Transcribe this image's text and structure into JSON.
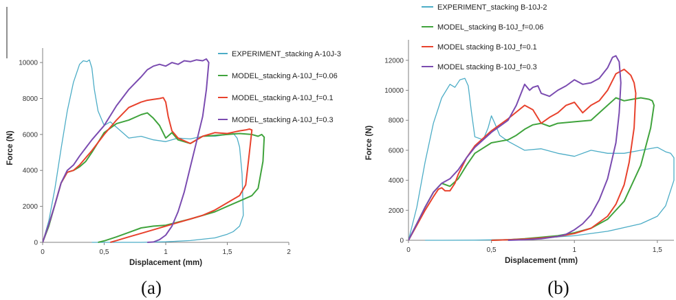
{
  "chart_data": [
    {
      "type": "line",
      "caption": "(a)",
      "xlabel": "Displacement (mm)",
      "ylabel": "Force (N)",
      "xlim": [
        0,
        2
      ],
      "ylim": [
        0,
        10500
      ],
      "xticks": [
        0,
        0.5,
        1,
        1.5,
        2
      ],
      "xtick_labels": [
        "0",
        "0,5",
        "1",
        "1,5",
        "2"
      ],
      "yticks": [
        0,
        2000,
        4000,
        6000,
        8000,
        10000
      ],
      "ytick_labels": [
        "0",
        "2000",
        "4000",
        "6000",
        "8000",
        "10000"
      ],
      "legend_position": "right",
      "series": [
        {
          "name": "EXPERIMENT_stacking A-10J-3",
          "color": "#4bacc6",
          "x": [
            0,
            0.05,
            0.1,
            0.15,
            0.2,
            0.25,
            0.3,
            0.33,
            0.36,
            0.38,
            0.4,
            0.42,
            0.45,
            0.5,
            0.55,
            0.6,
            0.65,
            0.7,
            0.8,
            0.9,
            1.0,
            1.1,
            1.2,
            1.3,
            1.4,
            1.5,
            1.55,
            1.58,
            1.6,
            1.62,
            1.63,
            1.6,
            1.55,
            1.5,
            1.4,
            1.2,
            1.0,
            0.8,
            0.6,
            0.5,
            0.4
          ],
          "y": [
            0,
            1200,
            3000,
            5200,
            7300,
            8900,
            9900,
            10100,
            10050,
            10150,
            9700,
            8500,
            7300,
            6500,
            6700,
            6400,
            6100,
            5800,
            5900,
            5700,
            5600,
            5800,
            5750,
            5900,
            5900,
            6000,
            6050,
            5800,
            5300,
            3800,
            1500,
            900,
            600,
            450,
            250,
            100,
            30,
            0,
            0,
            0,
            0
          ]
        },
        {
          "name": "MODEL_stacking A-10J_f=0.06",
          "color": "#3fa33c",
          "x": [
            0,
            0.05,
            0.1,
            0.15,
            0.2,
            0.25,
            0.3,
            0.35,
            0.4,
            0.5,
            0.6,
            0.7,
            0.8,
            0.85,
            0.9,
            0.95,
            1.0,
            1.05,
            1.1,
            1.2,
            1.3,
            1.4,
            1.5,
            1.6,
            1.7,
            1.75,
            1.78,
            1.8,
            1.79,
            1.75,
            1.7,
            1.6,
            1.5,
            1.4,
            1.2,
            1.0,
            0.9,
            0.8,
            0.7,
            0.6,
            0.5,
            0.45
          ],
          "y": [
            0,
            900,
            2100,
            3300,
            3900,
            4000,
            4200,
            4500,
            5000,
            6100,
            6600,
            6800,
            7100,
            7200,
            6900,
            6500,
            5800,
            6100,
            5700,
            5500,
            5900,
            5950,
            6000,
            6050,
            6000,
            5900,
            6000,
            5850,
            4500,
            3000,
            2600,
            2300,
            2000,
            1700,
            1300,
            950,
            900,
            800,
            550,
            300,
            80,
            0
          ]
        },
        {
          "name": "MODEL_stacking A-10J_f=0.1",
          "color": "#e8412c",
          "x": [
            0,
            0.05,
            0.1,
            0.15,
            0.2,
            0.25,
            0.3,
            0.4,
            0.5,
            0.6,
            0.7,
            0.8,
            0.85,
            0.9,
            0.95,
            0.98,
            1.0,
            1.02,
            1.05,
            1.1,
            1.2,
            1.3,
            1.4,
            1.5,
            1.6,
            1.65,
            1.68,
            1.7,
            1.68,
            1.65,
            1.6,
            1.5,
            1.4,
            1.3,
            1.2,
            1.0,
            0.9,
            0.8,
            0.7,
            0.6,
            0.55
          ],
          "y": [
            0,
            1000,
            2100,
            3300,
            3900,
            4000,
            4300,
            5100,
            6000,
            6800,
            7500,
            7800,
            7900,
            7950,
            8000,
            8050,
            7800,
            7000,
            6200,
            5800,
            5500,
            5900,
            6100,
            6050,
            6200,
            6250,
            6300,
            6250,
            5000,
            3200,
            2600,
            2200,
            1800,
            1500,
            1300,
            900,
            700,
            500,
            300,
            100,
            0
          ]
        },
        {
          "name": "MODEL_stacking A-10J_f=0.3",
          "color": "#7a4bb0",
          "x": [
            0,
            0.05,
            0.1,
            0.15,
            0.2,
            0.25,
            0.3,
            0.4,
            0.5,
            0.6,
            0.7,
            0.8,
            0.85,
            0.9,
            0.95,
            1.0,
            1.05,
            1.1,
            1.15,
            1.2,
            1.25,
            1.3,
            1.33,
            1.35,
            1.33,
            1.3,
            1.25,
            1.2,
            1.15,
            1.1,
            1.05,
            1.0,
            0.95,
            0.9,
            0.85
          ],
          "y": [
            0,
            1000,
            2100,
            3300,
            4000,
            4300,
            4800,
            5700,
            6500,
            7600,
            8500,
            9200,
            9600,
            9800,
            9900,
            9800,
            10000,
            9900,
            10100,
            10050,
            10150,
            10100,
            10200,
            10000,
            8500,
            7000,
            5600,
            4200,
            2800,
            1700,
            900,
            400,
            150,
            20,
            0
          ]
        }
      ]
    },
    {
      "type": "line",
      "caption": "(b)",
      "xlabel": "Displacement (mm)",
      "ylabel": "Force (N)",
      "xlim": [
        0,
        1.6
      ],
      "ylim": [
        0,
        13000
      ],
      "xticks": [
        0,
        0.5,
        1,
        1.5
      ],
      "xtick_labels": [
        "0",
        "0,5",
        "1",
        "1,5"
      ],
      "yticks": [
        0,
        2000,
        4000,
        6000,
        8000,
        10000,
        12000
      ],
      "ytick_labels": [
        "0",
        "2000",
        "4000",
        "6000",
        "8000",
        "10000",
        "12000"
      ],
      "legend_position": "top-left",
      "series": [
        {
          "name": "EXPERIMENT_stacking B-10J-2",
          "color": "#4bacc6",
          "x": [
            0,
            0.05,
            0.1,
            0.15,
            0.2,
            0.25,
            0.28,
            0.31,
            0.34,
            0.36,
            0.38,
            0.4,
            0.45,
            0.48,
            0.5,
            0.52,
            0.55,
            0.6,
            0.7,
            0.8,
            0.9,
            1.0,
            1.1,
            1.2,
            1.3,
            1.4,
            1.5,
            1.55,
            1.58,
            1.6,
            1.6,
            1.55,
            1.5,
            1.4,
            1.2,
            1.0,
            0.8,
            0.6,
            0.4,
            0.2,
            0.1
          ],
          "y": [
            0,
            2200,
            5200,
            7800,
            9500,
            10400,
            10200,
            10700,
            10800,
            10300,
            8500,
            6900,
            6700,
            7500,
            8300,
            7800,
            7000,
            6600,
            6000,
            6100,
            5800,
            5600,
            6000,
            5800,
            5800,
            6000,
            6200,
            5900,
            5800,
            5500,
            4000,
            2300,
            1600,
            1100,
            600,
            300,
            150,
            50,
            10,
            0,
            0
          ]
        },
        {
          "name": "MODEL_stacking B-10J_f=0.06",
          "color": "#3fa33c",
          "x": [
            0,
            0.05,
            0.1,
            0.15,
            0.2,
            0.25,
            0.28,
            0.3,
            0.35,
            0.4,
            0.5,
            0.55,
            0.6,
            0.65,
            0.7,
            0.75,
            0.8,
            0.85,
            0.9,
            1.0,
            1.1,
            1.2,
            1.25,
            1.3,
            1.35,
            1.4,
            1.45,
            1.47,
            1.48,
            1.46,
            1.4,
            1.3,
            1.2,
            1.1,
            1.0,
            0.9,
            0.8,
            0.7,
            0.6,
            0.5
          ],
          "y": [
            0,
            1100,
            2200,
            3200,
            3800,
            3600,
            3900,
            4100,
            5000,
            5800,
            6500,
            6600,
            6700,
            7000,
            7400,
            7700,
            7800,
            7600,
            7800,
            7900,
            8000,
            9000,
            9500,
            9300,
            9400,
            9500,
            9400,
            9300,
            9000,
            7500,
            5000,
            2600,
            1400,
            800,
            500,
            300,
            200,
            100,
            30,
            0
          ]
        },
        {
          "name": "MODEL stacking B-10J_f=0.1",
          "color": "#e8412c",
          "x": [
            0,
            0.05,
            0.1,
            0.15,
            0.18,
            0.2,
            0.22,
            0.25,
            0.28,
            0.3,
            0.35,
            0.4,
            0.5,
            0.6,
            0.7,
            0.75,
            0.8,
            0.85,
            0.9,
            0.95,
            1.0,
            1.05,
            1.1,
            1.15,
            1.2,
            1.25,
            1.3,
            1.32,
            1.34,
            1.36,
            1.37,
            1.36,
            1.33,
            1.3,
            1.25,
            1.2,
            1.1,
            1.0,
            0.9,
            0.8,
            0.7,
            0.6,
            0.5
          ],
          "y": [
            0,
            1000,
            2000,
            2900,
            3400,
            3500,
            3300,
            3300,
            3800,
            4400,
            5500,
            6300,
            7300,
            8100,
            9000,
            8700,
            7800,
            8200,
            8500,
            9000,
            9200,
            8500,
            9000,
            9300,
            10000,
            11100,
            11400,
            11200,
            11000,
            10500,
            9800,
            7500,
            5200,
            3700,
            2400,
            1600,
            800,
            450,
            250,
            150,
            80,
            30,
            0
          ]
        },
        {
          "name": "MODEL stacking B-10J_f=0.3",
          "color": "#7a4bb0",
          "x": [
            0,
            0.05,
            0.1,
            0.15,
            0.2,
            0.25,
            0.3,
            0.35,
            0.4,
            0.5,
            0.6,
            0.65,
            0.7,
            0.73,
            0.75,
            0.78,
            0.8,
            0.85,
            0.9,
            0.95,
            1.0,
            1.05,
            1.1,
            1.15,
            1.2,
            1.23,
            1.25,
            1.27,
            1.28,
            1.27,
            1.25,
            1.2,
            1.15,
            1.1,
            1.05,
            1.0,
            0.95,
            0.9,
            0.8,
            0.7,
            0.6
          ],
          "y": [
            0,
            1100,
            2200,
            3200,
            3800,
            4100,
            4700,
            5500,
            6200,
            7200,
            8000,
            9000,
            10400,
            10000,
            10200,
            10300,
            9800,
            9600,
            10000,
            10300,
            10700,
            10400,
            10500,
            10800,
            11500,
            12200,
            12300,
            11900,
            10500,
            8500,
            6500,
            4100,
            2700,
            1700,
            1100,
            700,
            400,
            250,
            100,
            30,
            0
          ]
        }
      ]
    }
  ]
}
